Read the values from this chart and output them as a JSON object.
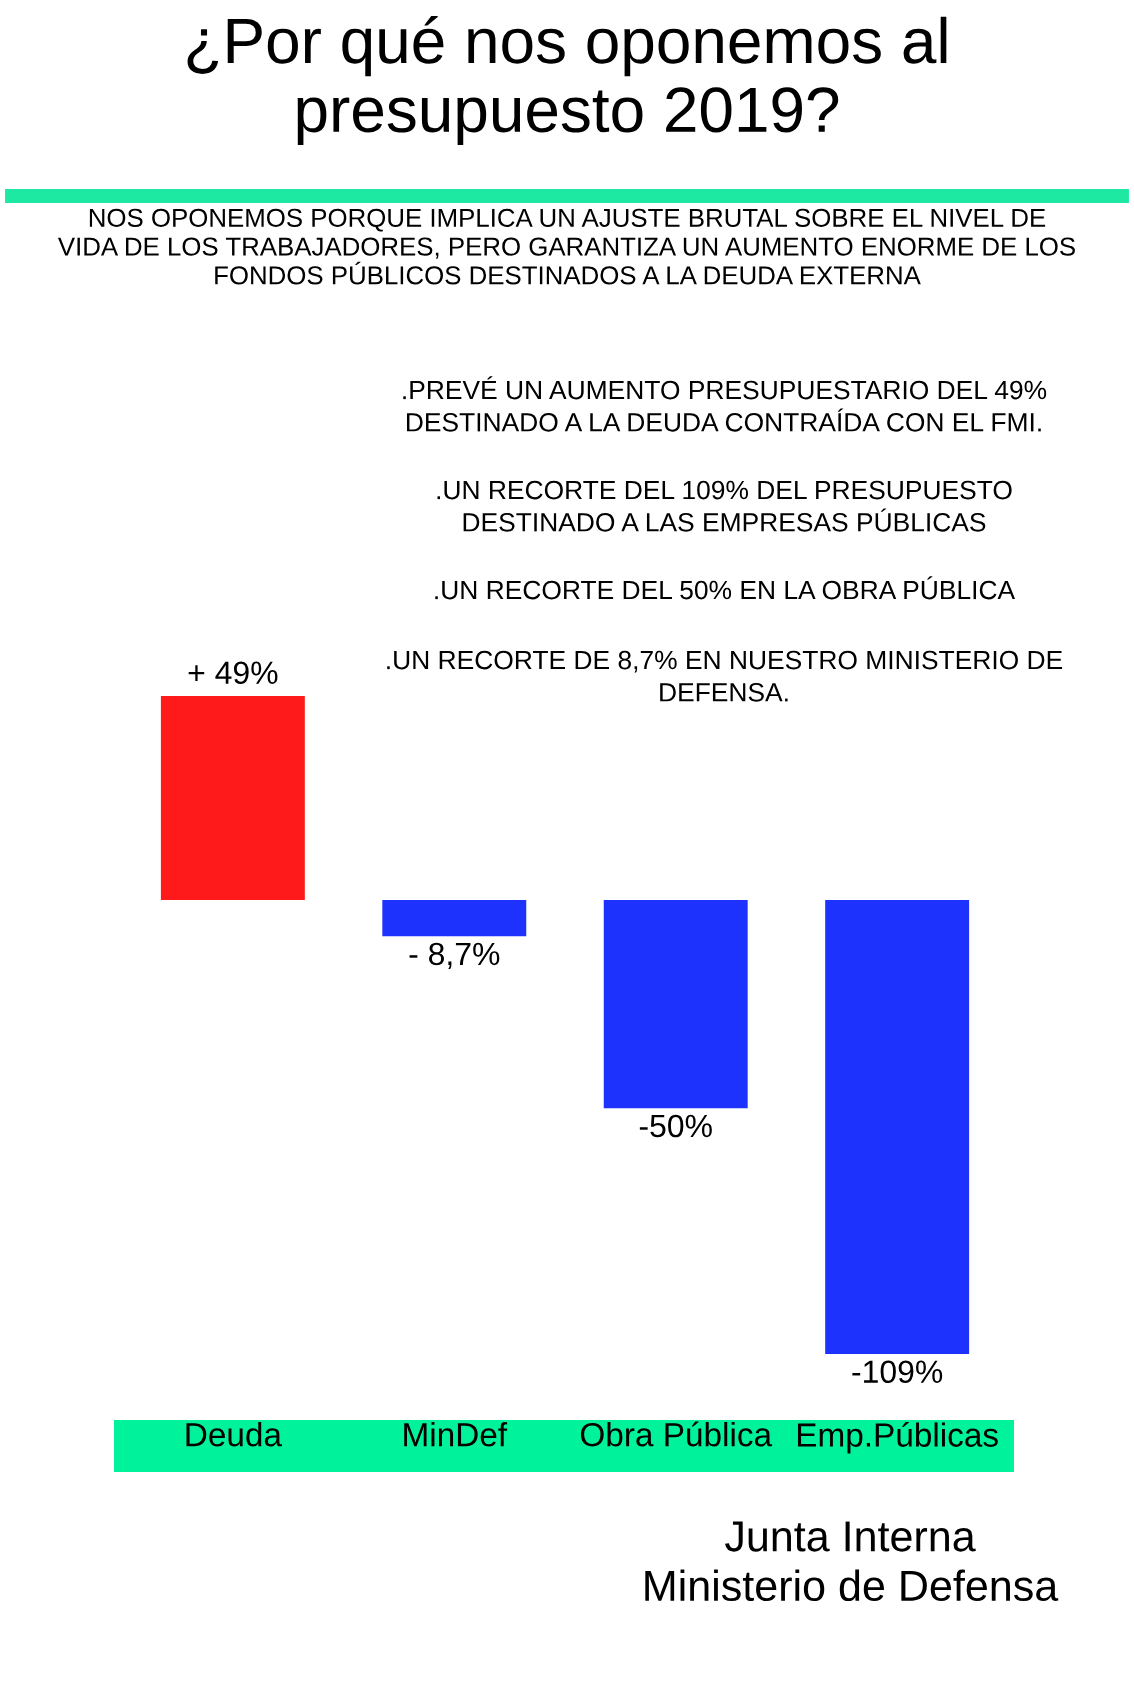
{
  "chart_data": {
    "type": "bar",
    "title": "¿Por qué nos oponemos al\npresupuesto 2019?",
    "subtitle": "NOS OPONEMOS PORQUE IMPLICA UN AJUSTE BRUTAL SOBRE EL NIVEL DE\nVIDA DE LOS TRABAJADORES, PERO GARANTIZA UN AUMENTO ENORME DE LOS\nFONDOS PÚBLICOS DESTINADOS A LA DEUDA EXTERNA",
    "categories": [
      "Deuda",
      "MinDef",
      "Obra Pública",
      "Emp.Públicas"
    ],
    "values": [
      49,
      -8.7,
      -50,
      -109
    ],
    "colors": [
      "#fe1a1a",
      "#1e32fe",
      "#1e32fe",
      "#1e32fe"
    ],
    "value_labels": [
      "+ 49%",
      "- 8,7%",
      "-50%",
      "-109%"
    ],
    "annotations": [
      ".PREVÉ UN AUMENTO PRESUPUESTARIO DEL 49%\nDESTINADO A LA DEUDA CONTRAÍDA CON EL FMI.",
      ".UN RECORTE DEL 109% DEL PRESUPUESTO\nDESTINADO A LAS EMPRESAS PÚBLICAS",
      ".UN RECORTE DEL 50% EN LA OBRA PÚBLICA",
      ".UN RECORTE DE 8,7% EN NUESTRO MINISTERIO DE\nDEFENSA.",
      "Junta Interna\nMinisterio de Defensa"
    ]
  }
}
